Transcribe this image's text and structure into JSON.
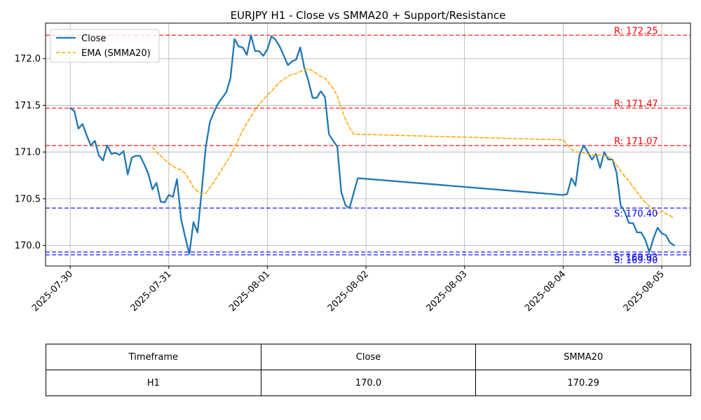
{
  "chart_data": {
    "type": "line",
    "title": "EURJPY H1 - Close vs SMMA20 + Support/Resistance",
    "xlabel": "",
    "ylabel": "",
    "xlim": [
      "2025-07-29 18:00",
      "2025-08-05 07:00"
    ],
    "ylim": [
      169.78,
      172.38
    ],
    "grid": true,
    "legend_position": "upper left",
    "x_ticks": [
      "2025-07-30",
      "2025-07-31",
      "2025-08-01",
      "2025-08-02",
      "2025-08-03",
      "2025-08-04",
      "2025-08-05"
    ],
    "y_ticks": [
      170.0,
      170.5,
      171.0,
      171.5,
      172.0
    ],
    "series": [
      {
        "name": "Close",
        "color": "#1f77b4",
        "x": [
          "2025-07-30 00:00",
          "2025-07-30 01:00",
          "2025-07-30 02:00",
          "2025-07-30 03:00",
          "2025-07-30 04:00",
          "2025-07-30 05:00",
          "2025-07-30 06:00",
          "2025-07-30 07:00",
          "2025-07-30 08:00",
          "2025-07-30 09:00",
          "2025-07-30 10:00",
          "2025-07-30 11:00",
          "2025-07-30 12:00",
          "2025-07-30 13:00",
          "2025-07-30 14:00",
          "2025-07-30 15:00",
          "2025-07-30 16:00",
          "2025-07-30 17:00",
          "2025-07-30 18:00",
          "2025-07-30 19:00",
          "2025-07-30 20:00",
          "2025-07-30 21:00",
          "2025-07-30 22:00",
          "2025-07-30 23:00",
          "2025-07-31 00:00",
          "2025-07-31 01:00",
          "2025-07-31 02:00",
          "2025-07-31 03:00",
          "2025-07-31 04:00",
          "2025-07-31 05:00",
          "2025-07-31 06:00",
          "2025-07-31 07:00",
          "2025-07-31 08:00",
          "2025-07-31 09:00",
          "2025-07-31 10:00",
          "2025-07-31 11:00",
          "2025-07-31 12:00",
          "2025-07-31 13:00",
          "2025-07-31 14:00",
          "2025-07-31 15:00",
          "2025-07-31 16:00",
          "2025-07-31 17:00",
          "2025-07-31 18:00",
          "2025-07-31 19:00",
          "2025-07-31 20:00",
          "2025-07-31 21:00",
          "2025-07-31 22:00",
          "2025-07-31 23:00",
          "2025-08-01 00:00",
          "2025-08-01 01:00",
          "2025-08-01 02:00",
          "2025-08-01 03:00",
          "2025-08-01 04:00",
          "2025-08-01 05:00",
          "2025-08-01 06:00",
          "2025-08-01 07:00",
          "2025-08-01 08:00",
          "2025-08-01 09:00",
          "2025-08-01 10:00",
          "2025-08-01 11:00",
          "2025-08-01 12:00",
          "2025-08-01 13:00",
          "2025-08-01 14:00",
          "2025-08-01 15:00",
          "2025-08-01 16:00",
          "2025-08-01 17:00",
          "2025-08-01 18:00",
          "2025-08-01 19:00",
          "2025-08-01 20:00",
          "2025-08-01 21:00",
          "2025-08-01 22:00",
          "2025-08-04 00:00",
          "2025-08-04 01:00",
          "2025-08-04 02:00",
          "2025-08-04 03:00",
          "2025-08-04 04:00",
          "2025-08-04 05:00",
          "2025-08-04 06:00",
          "2025-08-04 07:00",
          "2025-08-04 08:00",
          "2025-08-04 09:00",
          "2025-08-04 10:00",
          "2025-08-04 11:00",
          "2025-08-04 12:00",
          "2025-08-04 13:00",
          "2025-08-04 14:00",
          "2025-08-04 15:00",
          "2025-08-04 16:00",
          "2025-08-04 17:00",
          "2025-08-04 18:00",
          "2025-08-04 19:00",
          "2025-08-04 20:00",
          "2025-08-04 21:00",
          "2025-08-04 22:00",
          "2025-08-04 23:00",
          "2025-08-05 00:00",
          "2025-08-05 01:00",
          "2025-08-05 02:00",
          "2025-08-05 03:00"
        ],
        "values": [
          171.47,
          171.44,
          171.25,
          171.3,
          171.18,
          171.07,
          171.12,
          170.96,
          170.91,
          171.07,
          170.98,
          170.99,
          170.97,
          171.01,
          170.76,
          170.94,
          170.96,
          170.96,
          170.87,
          170.77,
          170.6,
          170.67,
          170.47,
          170.46,
          170.54,
          170.52,
          170.71,
          170.28,
          170.09,
          169.91,
          170.25,
          170.14,
          170.58,
          171.05,
          171.32,
          171.43,
          171.52,
          171.58,
          171.64,
          171.79,
          172.21,
          172.13,
          172.12,
          172.04,
          172.25,
          172.08,
          172.08,
          172.03,
          172.1,
          172.24,
          172.2,
          172.13,
          172.03,
          171.93,
          171.97,
          171.99,
          172.12,
          171.9,
          171.76,
          171.58,
          171.58,
          171.65,
          171.59,
          171.19,
          171.12,
          171.06,
          170.57,
          170.43,
          170.4,
          170.56,
          170.72,
          170.54,
          170.55,
          170.72,
          170.64,
          170.97,
          171.07,
          171.0,
          170.92,
          170.98,
          170.83,
          171.0,
          170.92,
          170.92,
          170.78,
          170.43,
          170.36,
          170.24,
          170.24,
          170.14,
          170.14,
          170.06,
          169.93,
          170.08,
          170.19,
          170.13,
          170.11,
          170.03,
          170.0
        ]
      },
      {
        "name": "EMA (SMMA20)",
        "color": "#ffa500",
        "x": [
          "2025-07-30 20:00",
          "2025-07-30 21:00",
          "2025-07-30 22:00",
          "2025-07-30 23:00",
          "2025-07-31 00:00",
          "2025-07-31 01:00",
          "2025-07-31 02:00",
          "2025-07-31 03:00",
          "2025-07-31 04:00",
          "2025-07-31 05:00",
          "2025-07-31 06:00",
          "2025-07-31 07:00",
          "2025-07-31 08:00",
          "2025-07-31 09:00",
          "2025-07-31 10:00",
          "2025-07-31 11:00",
          "2025-07-31 12:00",
          "2025-07-31 13:00",
          "2025-07-31 14:00",
          "2025-07-31 15:00",
          "2025-07-31 16:00",
          "2025-07-31 17:00",
          "2025-07-31 18:00",
          "2025-07-31 19:00",
          "2025-07-31 20:00",
          "2025-07-31 21:00",
          "2025-07-31 22:00",
          "2025-07-31 23:00",
          "2025-08-01 00:00",
          "2025-08-01 01:00",
          "2025-08-01 02:00",
          "2025-08-01 03:00",
          "2025-08-01 04:00",
          "2025-08-01 05:00",
          "2025-08-01 06:00",
          "2025-08-01 07:00",
          "2025-08-01 08:00",
          "2025-08-01 09:00",
          "2025-08-01 10:00",
          "2025-08-01 11:00",
          "2025-08-01 12:00",
          "2025-08-01 13:00",
          "2025-08-01 14:00",
          "2025-08-01 15:00",
          "2025-08-01 16:00",
          "2025-08-01 17:00",
          "2025-08-01 18:00",
          "2025-08-01 19:00",
          "2025-08-01 20:00",
          "2025-08-01 21:00",
          "2025-08-01 22:00",
          "2025-08-04 00:00",
          "2025-08-04 01:00",
          "2025-08-04 02:00",
          "2025-08-04 03:00",
          "2025-08-04 04:00",
          "2025-08-04 05:00",
          "2025-08-04 06:00",
          "2025-08-04 07:00",
          "2025-08-04 08:00",
          "2025-08-04 09:00",
          "2025-08-04 10:00",
          "2025-08-04 11:00",
          "2025-08-04 12:00",
          "2025-08-04 13:00",
          "2025-08-04 14:00",
          "2025-08-04 15:00",
          "2025-08-04 16:00",
          "2025-08-04 17:00",
          "2025-08-04 18:00",
          "2025-08-04 19:00",
          "2025-08-04 20:00",
          "2025-08-04 21:00",
          "2025-08-04 22:00",
          "2025-08-04 23:00",
          "2025-08-05 00:00",
          "2025-08-05 01:00",
          "2025-08-05 02:00",
          "2025-08-05 03:00"
        ],
        "values": [
          171.05,
          171.0,
          170.96,
          170.92,
          170.88,
          170.85,
          170.82,
          170.81,
          170.77,
          170.7,
          170.62,
          170.58,
          170.55,
          170.56,
          170.62,
          170.68,
          170.75,
          170.82,
          170.89,
          170.96,
          171.05,
          171.14,
          171.23,
          171.31,
          171.38,
          171.45,
          171.51,
          171.56,
          171.61,
          171.65,
          171.7,
          171.75,
          171.78,
          171.81,
          171.83,
          171.84,
          171.86,
          171.88,
          171.89,
          171.87,
          171.84,
          171.81,
          171.79,
          171.74,
          171.68,
          171.6,
          171.47,
          171.35,
          171.26,
          171.19,
          171.19,
          171.13,
          171.08,
          171.03,
          171.0,
          171.0,
          170.99,
          170.98,
          170.97,
          170.96,
          170.97,
          170.96,
          170.95,
          170.92,
          170.86,
          170.8,
          170.74,
          170.69,
          170.63,
          170.57,
          170.51,
          170.46,
          170.42,
          170.38,
          170.34,
          170.37,
          170.34,
          170.32,
          170.29
        ]
      }
    ],
    "levels": [
      {
        "type": "resistance",
        "label": "R: 172.25",
        "value": 172.25,
        "color": "#ff0000"
      },
      {
        "type": "resistance",
        "label": "R: 171.47",
        "value": 171.47,
        "color": "#ff0000"
      },
      {
        "type": "resistance",
        "label": "R: 171.07",
        "value": 171.07,
        "color": "#ff0000"
      },
      {
        "type": "support",
        "label": "S: 170.40",
        "value": 170.4,
        "color": "#0000ff"
      },
      {
        "type": "support",
        "label": "S: 169.93",
        "value": 169.93,
        "color": "#0000ff"
      },
      {
        "type": "support",
        "label": "S: 169.90",
        "value": 169.9,
        "color": "#0000ff"
      }
    ]
  },
  "table": {
    "headers": [
      "Timeframe",
      "Close",
      "SMMA20"
    ],
    "row": [
      "H1",
      "170.0",
      "170.29"
    ]
  }
}
